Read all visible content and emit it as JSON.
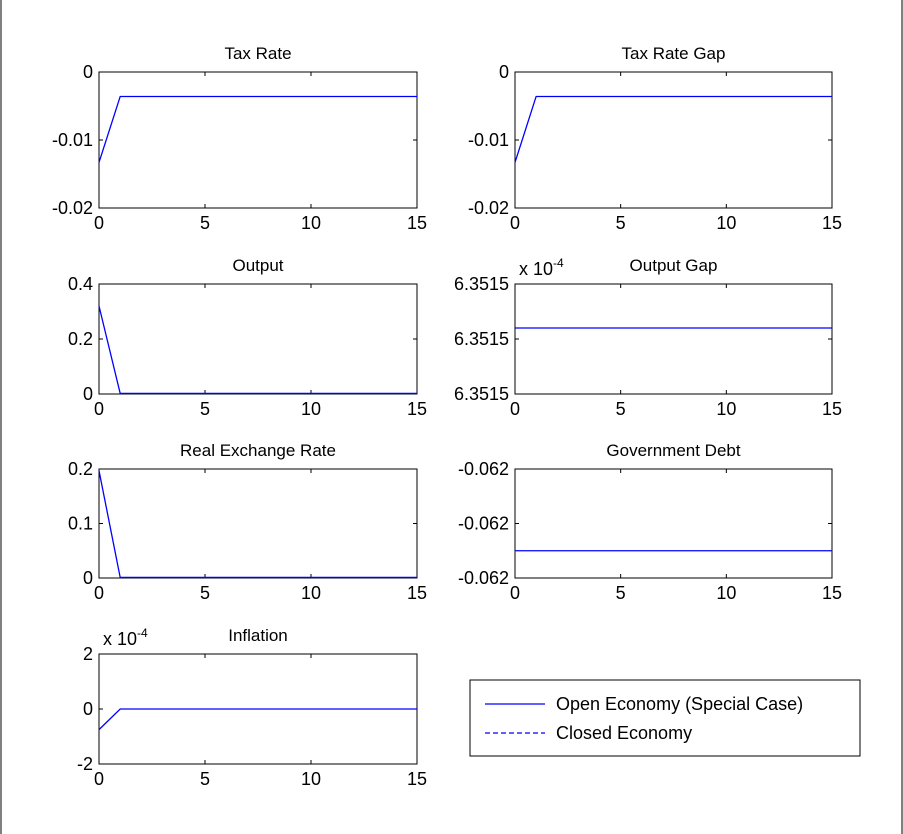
{
  "figure": {
    "background": "#ffffff",
    "axes_color": "#000000",
    "line_color": "#0000ff"
  },
  "legend": {
    "placement": "bottom-right",
    "entries": [
      {
        "label": "Open Economy (Special Case)",
        "style": "solid"
      },
      {
        "label": "Closed Economy",
        "style": "dashed"
      }
    ]
  },
  "chart_data": [
    {
      "type": "line",
      "title": "Tax Rate",
      "xlim": [
        0,
        15
      ],
      "ylim": [
        -0.02,
        0
      ],
      "xticks": [
        0,
        5,
        10,
        15
      ],
      "yticks": [
        -0.02,
        -0.01,
        0
      ],
      "xtick_labels": [
        "0",
        "5",
        "10",
        "15"
      ],
      "ytick_labels": [
        "-0.02",
        "-0.01",
        "0"
      ],
      "exponent": "",
      "series": [
        {
          "x": [
            0,
            1,
            15
          ],
          "y": [
            -0.0133,
            -0.0036,
            -0.0036
          ]
        }
      ]
    },
    {
      "type": "line",
      "title": "Tax Rate Gap",
      "xlim": [
        0,
        15
      ],
      "ylim": [
        -0.02,
        0
      ],
      "xticks": [
        0,
        5,
        10,
        15
      ],
      "yticks": [
        -0.02,
        -0.01,
        0
      ],
      "xtick_labels": [
        "0",
        "5",
        "10",
        "15"
      ],
      "ytick_labels": [
        "-0.02",
        "-0.01",
        "0"
      ],
      "exponent": "",
      "series": [
        {
          "x": [
            0,
            1,
            15
          ],
          "y": [
            -0.0133,
            -0.0036,
            -0.0036
          ]
        }
      ]
    },
    {
      "type": "line",
      "title": "Output",
      "xlim": [
        0,
        15
      ],
      "ylim": [
        0,
        0.4
      ],
      "xticks": [
        0,
        5,
        10,
        15
      ],
      "yticks": [
        0,
        0.2,
        0.4
      ],
      "xtick_labels": [
        "0",
        "5",
        "10",
        "15"
      ],
      "ytick_labels": [
        "0",
        "0.2",
        "0.4"
      ],
      "exponent": "",
      "series": [
        {
          "x": [
            0,
            1,
            15
          ],
          "y": [
            0.32,
            0.002,
            0.002
          ]
        }
      ]
    },
    {
      "type": "line",
      "title": "Output Gap",
      "xlim": [
        0,
        15
      ],
      "ylim": [
        0,
        1
      ],
      "xticks": [
        0,
        5,
        10,
        15
      ],
      "yticks": [
        0,
        0.5,
        1
      ],
      "xtick_labels": [
        "0",
        "5",
        "10",
        "15"
      ],
      "ytick_labels": [
        "6.3515",
        "6.3515",
        "6.3515"
      ],
      "exponent": "x 10",
      "exponent_power": "-4",
      "series": [
        {
          "x": [
            0,
            15
          ],
          "y": [
            0.6,
            0.6
          ]
        }
      ]
    },
    {
      "type": "line",
      "title": "Real Exchange Rate",
      "xlim": [
        0,
        15
      ],
      "ylim": [
        0,
        0.2
      ],
      "xticks": [
        0,
        5,
        10,
        15
      ],
      "yticks": [
        0,
        0.1,
        0.2
      ],
      "xtick_labels": [
        "0",
        "5",
        "10",
        "15"
      ],
      "ytick_labels": [
        "0",
        "0.1",
        "0.2"
      ],
      "exponent": "",
      "series": [
        {
          "x": [
            0,
            1,
            15
          ],
          "y": [
            0.197,
            0.001,
            0.001
          ]
        }
      ]
    },
    {
      "type": "line",
      "title": "Government Debt",
      "xlim": [
        0,
        15
      ],
      "ylim": [
        0,
        1
      ],
      "xticks": [
        0,
        5,
        10,
        15
      ],
      "yticks": [
        0,
        0.5,
        1
      ],
      "xtick_labels": [
        "0",
        "5",
        "10",
        "15"
      ],
      "ytick_labels": [
        "-0.062",
        "-0.062",
        "-0.062"
      ],
      "exponent": "",
      "series": [
        {
          "x": [
            0,
            15
          ],
          "y": [
            0.25,
            0.25
          ]
        }
      ]
    },
    {
      "type": "line",
      "title": "Inflation",
      "xlim": [
        0,
        15
      ],
      "ylim": [
        -2,
        2
      ],
      "xticks": [
        0,
        5,
        10,
        15
      ],
      "yticks": [
        -2,
        0,
        2
      ],
      "xtick_labels": [
        "0",
        "5",
        "10",
        "15"
      ],
      "ytick_labels": [
        "-2",
        "0",
        "2"
      ],
      "exponent": "x 10",
      "exponent_power": "-4",
      "series": [
        {
          "x": [
            0,
            1,
            15
          ],
          "y": [
            -0.75,
            0,
            0
          ]
        }
      ]
    }
  ]
}
